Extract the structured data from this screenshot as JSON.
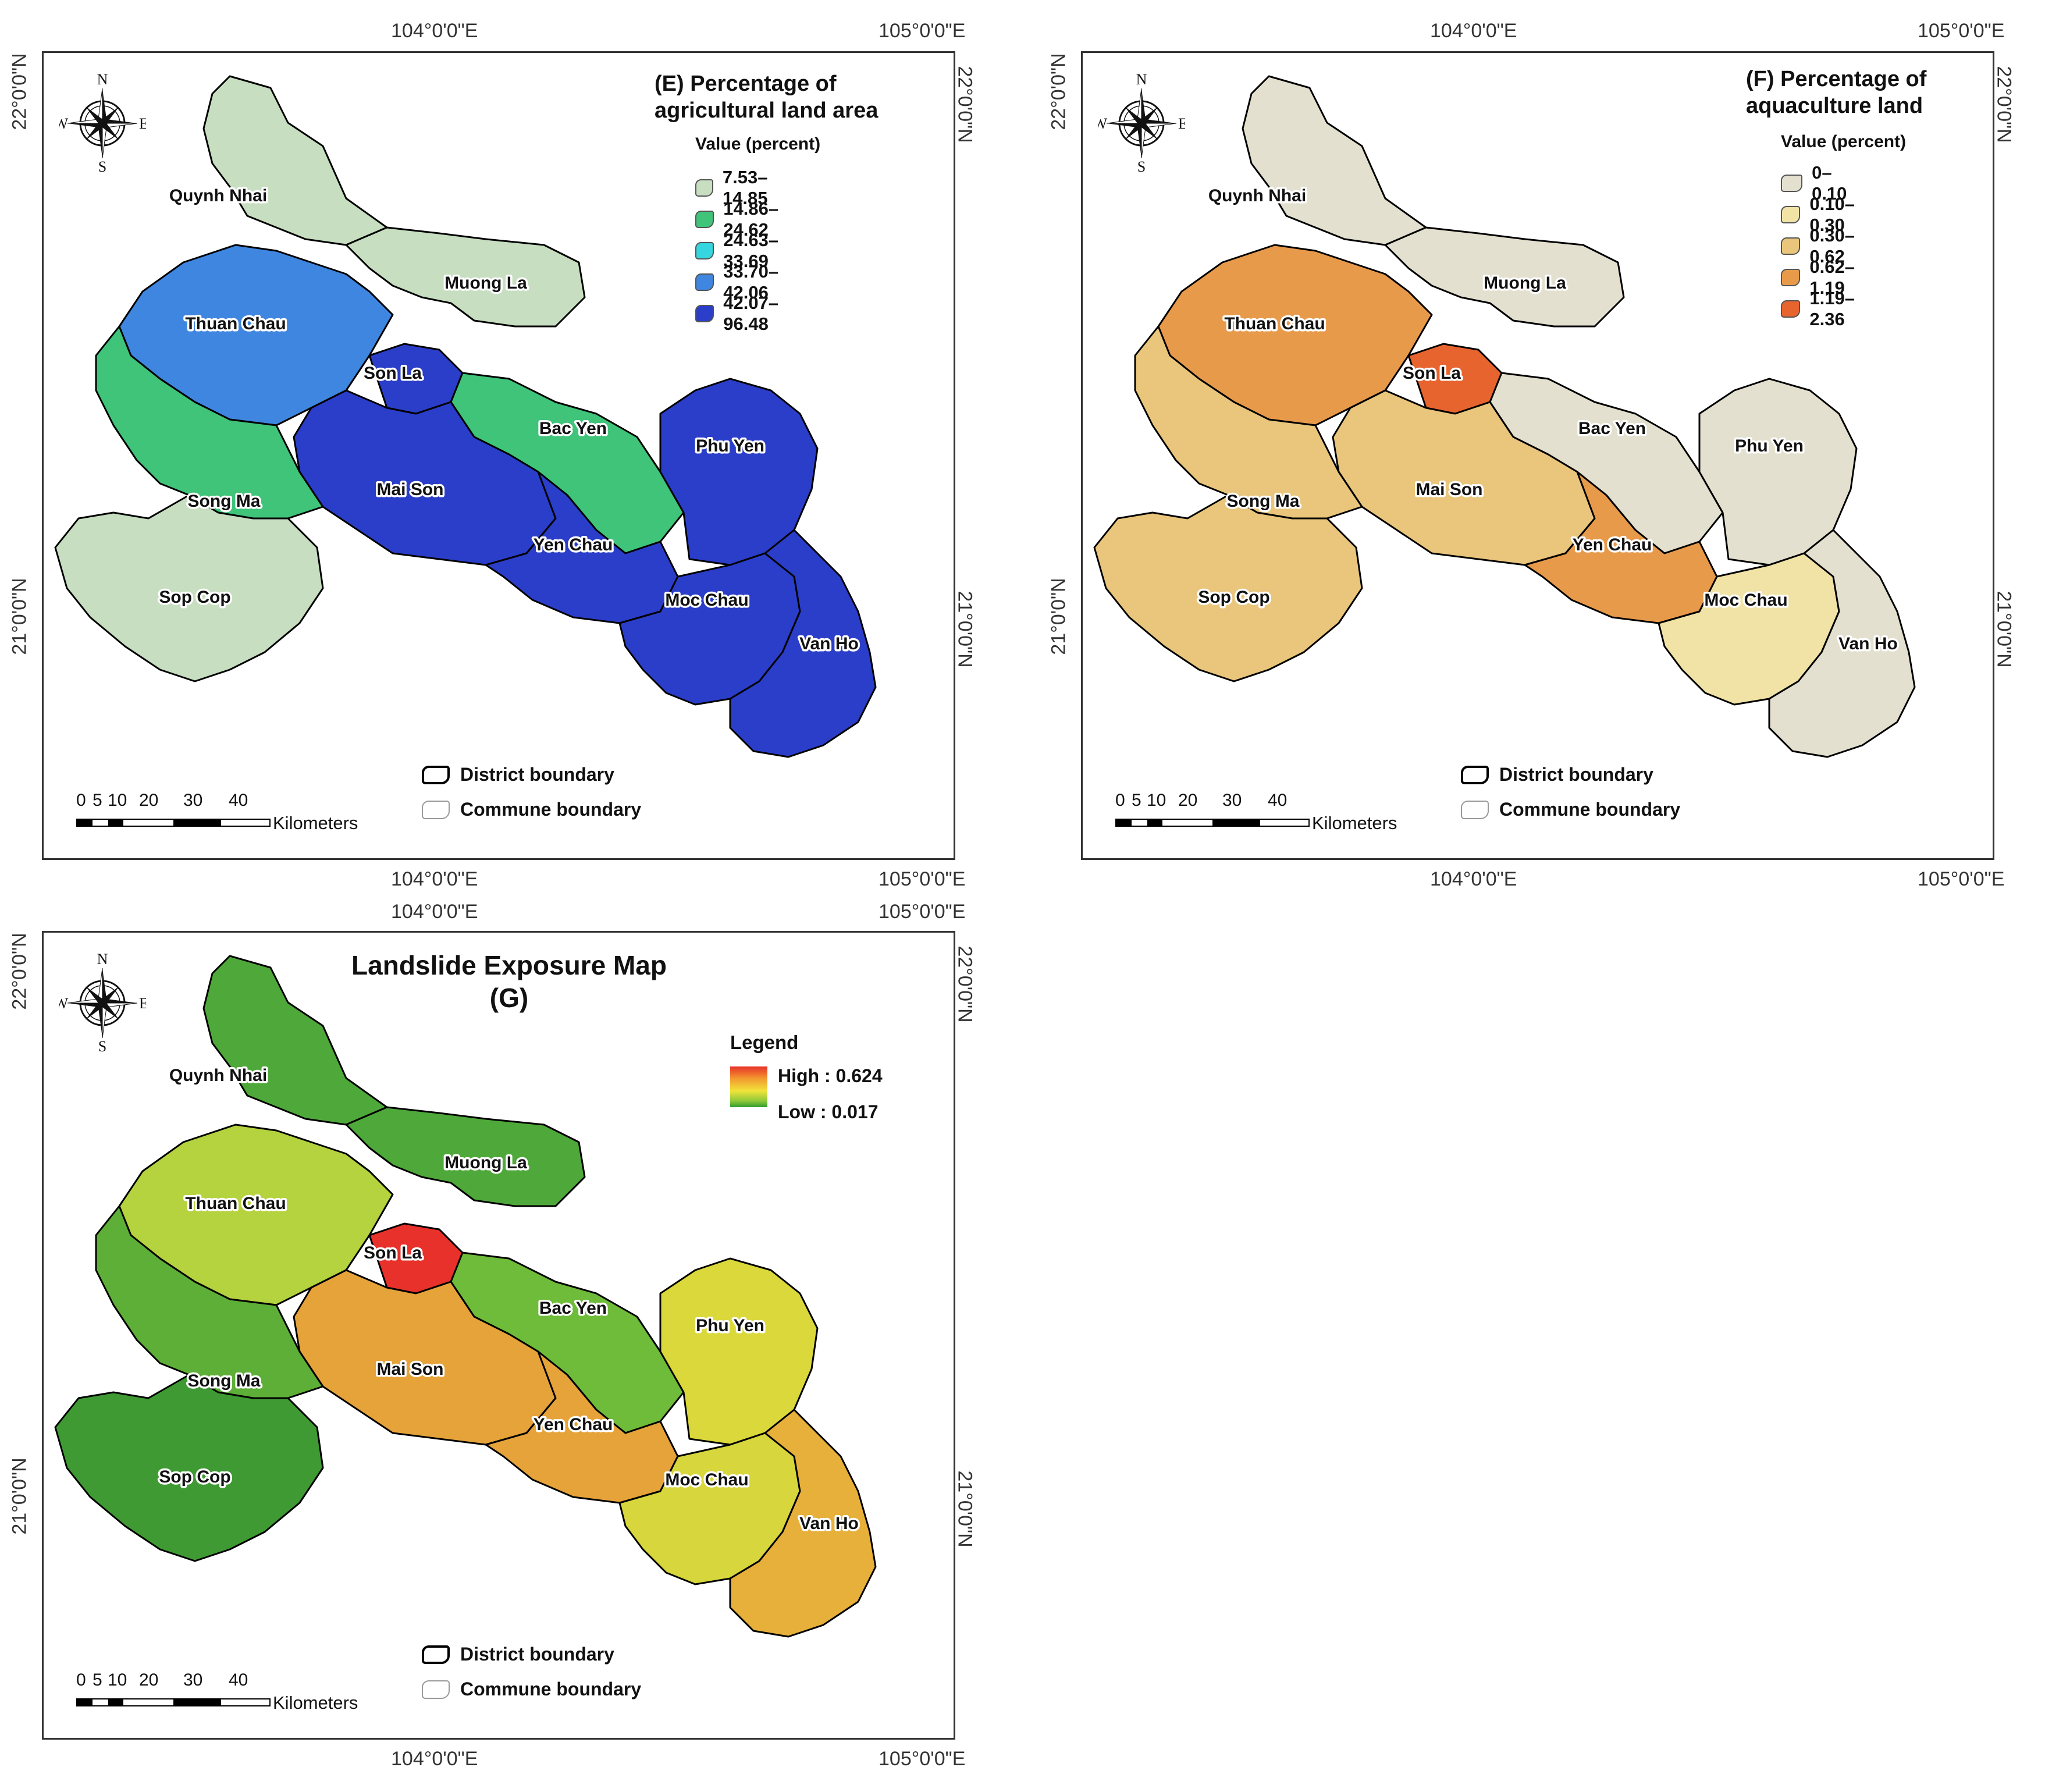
{
  "panels": [
    {
      "id": "E",
      "title": "(E) Percentage of agricultural land area",
      "title_line1": "(E) Percentage of",
      "title_line2": "agricultural land area",
      "legend_subtitle": "Value (percent)",
      "classes": [
        {
          "label": "7.53–14.85",
          "color": "#c7dec1"
        },
        {
          "label": "14.86–24.62",
          "color": "#3fc47a"
        },
        {
          "label": "24.63–33.69",
          "color": "#35d6df"
        },
        {
          "label": "33.70–42.06",
          "color": "#3f86e0"
        },
        {
          "label": "42.07–96.48",
          "color": "#2b3ec9"
        }
      ]
    },
    {
      "id": "F",
      "title": "(F) Percentage of aquaculture land",
      "title_line1": "(F) Percentage of",
      "title_line2": "aquaculture land",
      "legend_subtitle": "Value (percent)",
      "classes": [
        {
          "label": "0–0.10",
          "color": "#e3e0cf"
        },
        {
          "label": "0.10–0.30",
          "color": "#f1e3a6"
        },
        {
          "label": "0.30–0.62",
          "color": "#e9c67c"
        },
        {
          "label": "0.62–1.19",
          "color": "#e89a4b"
        },
        {
          "label": "1.19–2.36",
          "color": "#e8642f"
        }
      ]
    },
    {
      "id": "G",
      "title_line1": "Landslide Exposure Map",
      "title_line2": "(G)",
      "legend_heading": "Legend",
      "high_label": "High : 0.624",
      "low_label": "Low : 0.017",
      "gradient": [
        "#e8312a",
        "#f39a2f",
        "#f1e43a",
        "#8cc83a",
        "#2f9c2f"
      ]
    }
  ],
  "graticule": {
    "lon_104": "104°0'0\"E",
    "lon_105": "105°0'0\"E",
    "lat_22": "22°0'0\"N",
    "lat_21": "21°0'0\"N"
  },
  "districts": [
    "Quynh Nhai",
    "Muong La",
    "Thuan Chau",
    "Son La",
    "Bac Yen",
    "Phu Yen",
    "Mai Son",
    "Song Ma",
    "Yen Chau",
    "Sop Cop",
    "Moc Chau",
    "Van Ho"
  ],
  "boundary_legend": {
    "district": "District boundary",
    "commune": "Commune boundary"
  },
  "scale_bar": {
    "ticks": [
      "0",
      "5",
      "10",
      "20",
      "30",
      "40"
    ],
    "unit": "Kilometers"
  },
  "compass": {
    "n": "N",
    "s": "S",
    "e": "E",
    "w": "W"
  },
  "district_fill": {
    "E": {
      "Quynh Nhai": "#c7dec1",
      "Muong La": "#c7dec1",
      "Thuan Chau": "#3f86e0",
      "Son La": "#2b3ec9",
      "Bac Yen": "#3fc47a",
      "Phu Yen": "#2b3ec9",
      "Mai Son": "#2b3ec9",
      "Song Ma": "#3fc47a",
      "Yen Chau": "#2b3ec9",
      "Sop Cop": "#c7dec1",
      "Moc Chau": "#2b3ec9",
      "Van Ho": "#2b3ec9"
    },
    "F": {
      "Quynh Nhai": "#e3e0cf",
      "Muong La": "#e3e0cf",
      "Thuan Chau": "#e89a4b",
      "Son La": "#e8642f",
      "Bac Yen": "#e3e0cf",
      "Phu Yen": "#e3e0cf",
      "Mai Son": "#e9c67c",
      "Song Ma": "#e9c67c",
      "Yen Chau": "#e89a4b",
      "Sop Cop": "#e9c67c",
      "Moc Chau": "#f1e3a6",
      "Van Ho": "#e3e0cf"
    },
    "G": {
      "Quynh Nhai": "#4fa83a",
      "Muong La": "#4fa83a",
      "Thuan Chau": "#b5d23f",
      "Son La": "#e8312a",
      "Bac Yen": "#6fbb3a",
      "Phu Yen": "#dbd83c",
      "Mai Son": "#e6a33a",
      "Song Ma": "#5daf38",
      "Yen Chau": "#e6a33a",
      "Sop Cop": "#3f9a33",
      "Moc Chau": "#d7d63c",
      "Van Ho": "#e6b03a"
    }
  }
}
